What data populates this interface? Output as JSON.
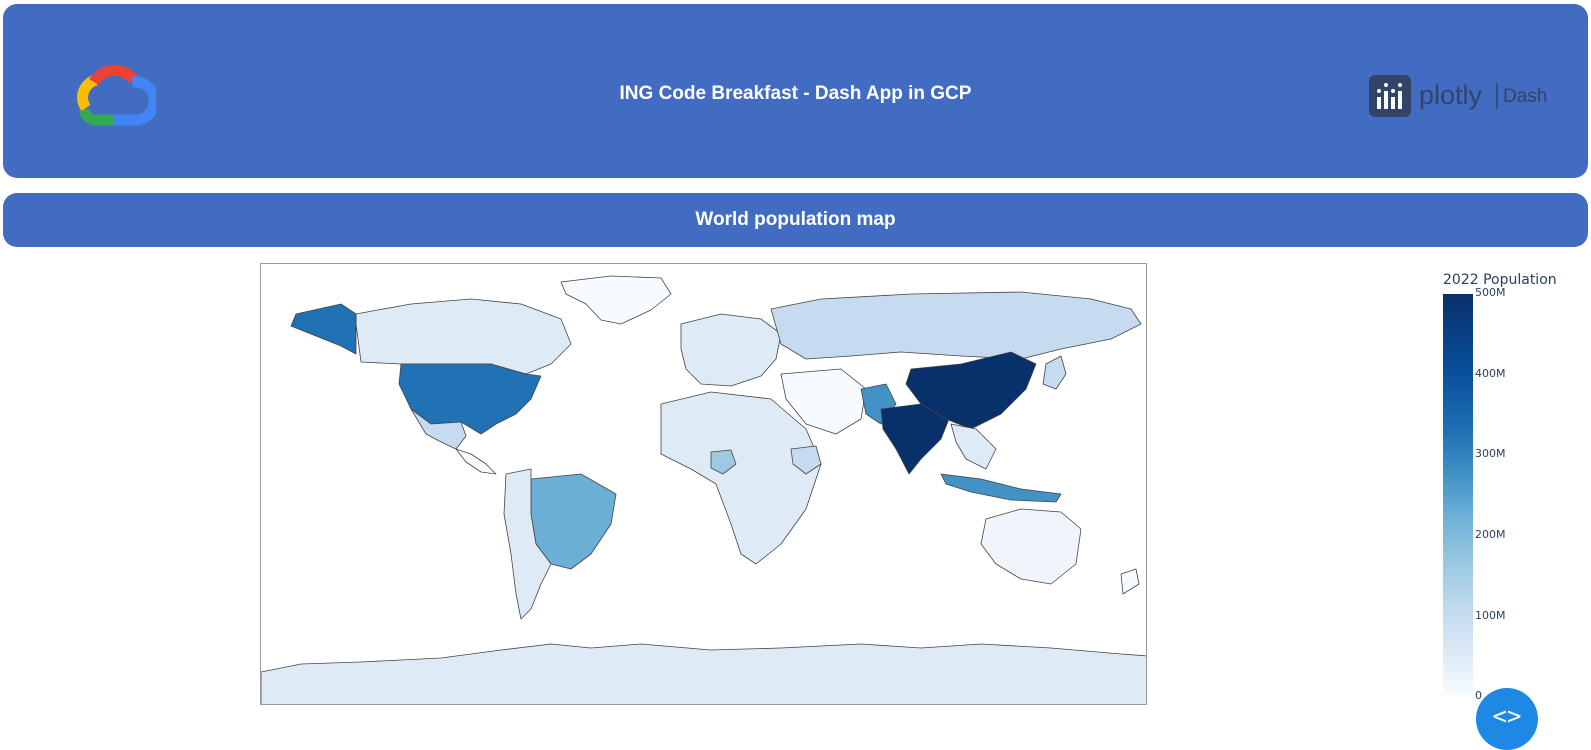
{
  "header": {
    "title": "ING Code Breakfast - Dash App in GCP",
    "left_logo": "google-cloud-logo",
    "right_logo_text": "plotly",
    "right_logo_suffix": "Dash"
  },
  "section": {
    "title": "World population map"
  },
  "map": {
    "type": "choropleth",
    "colorbar_title": "2022 Population",
    "colorscale": [
      "#f7fbff",
      "#deebf7",
      "#c6dbef",
      "#9ecae1",
      "#6baed6",
      "#4292c6",
      "#2171b5",
      "#08519c",
      "#08306b"
    ],
    "range": [
      0,
      500000000
    ],
    "ticks": [
      "500M",
      "400M",
      "300M",
      "200M",
      "100M",
      "0"
    ]
  },
  "debug_button": {
    "icon": "code-brackets-icon",
    "glyph": "<>"
  }
}
